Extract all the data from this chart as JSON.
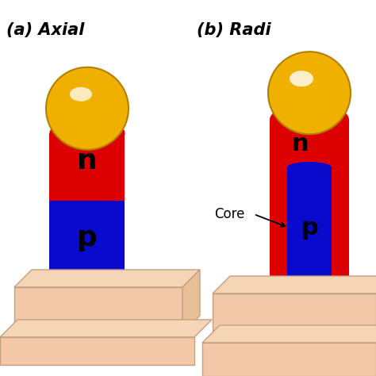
{
  "title_a": "(a) Axial",
  "title_b": "(b) Radi",
  "background_color": "#ffffff",
  "red_color": "#dd0000",
  "blue_color": "#0a0acc",
  "gold_color": "#f0b000",
  "gold_edge": "#b08000",
  "substrate_color": "#f2c8a8",
  "substrate_edge": "#c0a080",
  "substrate_top_color": "#f5d5b5",
  "label_n": "n",
  "label_p": "p",
  "label_core": "Core",
  "text_color": "#000000"
}
